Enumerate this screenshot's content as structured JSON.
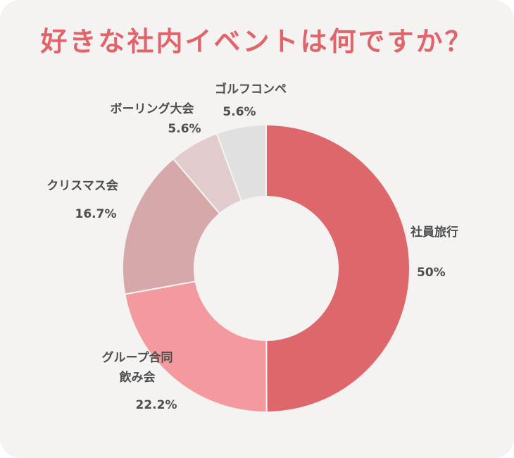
{
  "title": "好きな社内イベントは何ですか？",
  "chart_data": {
    "type": "pie",
    "title": "好きな社内イベントは何ですか？",
    "inner_radius_ratio": 0.5,
    "slices": [
      {
        "name": "社員旅行",
        "value": 50,
        "value_label": "50%",
        "color": "#de676c"
      },
      {
        "name": "グループ合同飲み会",
        "value": 22.2,
        "value_label": "22.2%",
        "color": "#f4999e"
      },
      {
        "name": "クリスマス会",
        "value": 16.7,
        "value_label": "16.7%",
        "color": "#d7a8aa"
      },
      {
        "name": "ボーリング大会",
        "value": 5.6,
        "value_label": "5.6%",
        "color": "#e1cbcc"
      },
      {
        "name": "ゴルフコンペ",
        "value": 5.6,
        "value_label": "5.6%",
        "color": "#e1e0e0"
      }
    ]
  }
}
